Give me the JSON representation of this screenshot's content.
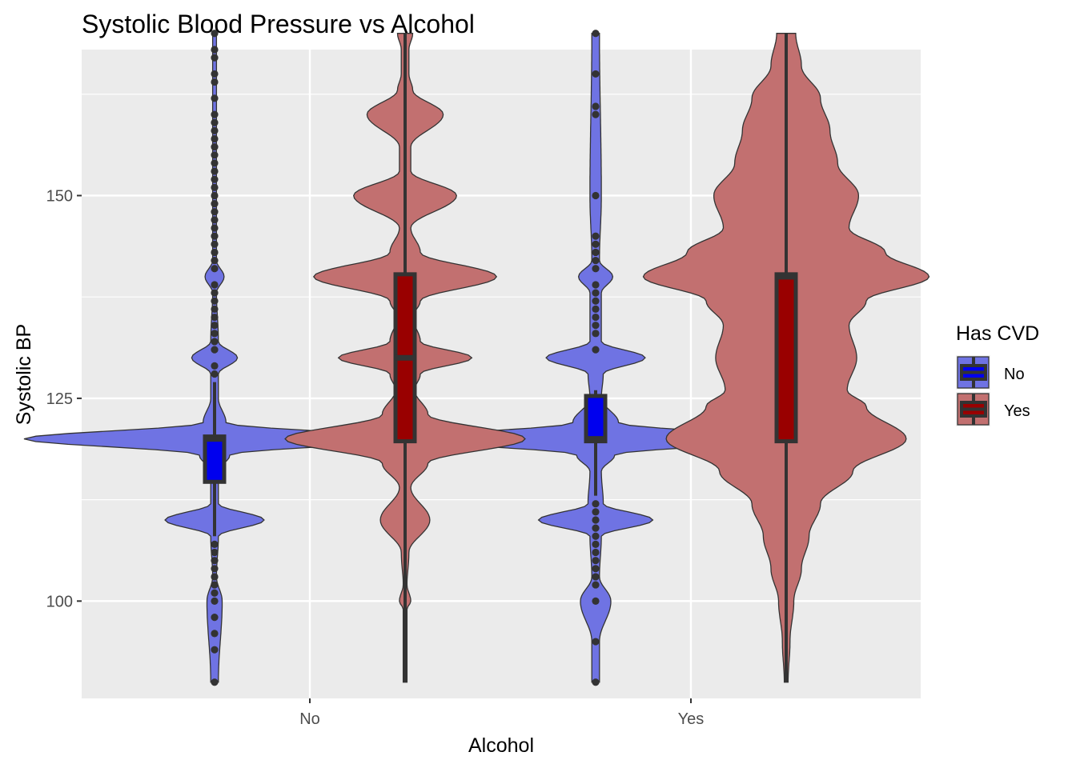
{
  "chart_data": {
    "type": "violin",
    "title": "Systolic Blood Pressure vs Alcohol",
    "xlabel": "Alcohol",
    "ylabel": "Systolic BP",
    "categories": [
      "No",
      "Yes"
    ],
    "ylim": [
      88,
      168
    ],
    "yticks": [
      100,
      125,
      150
    ],
    "grid": true,
    "legend": {
      "title": "Has CVD",
      "position": "right",
      "entries": [
        "No",
        "Yes"
      ]
    },
    "colors": {
      "No": {
        "violin_fill": "#6f73e3",
        "box_fill": "#0000ee"
      },
      "Yes": {
        "violin_fill": "#c27070",
        "box_fill": "#990000"
      },
      "panel": "#ebebeb",
      "grid": "#ffffff",
      "outline": "#333333"
    },
    "series": [
      {
        "name": "No",
        "groups": [
          {
            "category": "No",
            "box": {
              "q1": 115,
              "median": 120,
              "q3": 120,
              "whisker_low": 108,
              "whisker_high": 127
            },
            "range": [
              90,
              170
            ],
            "violin": [
              [
                90,
                0.02
              ],
              [
                100,
                0.04
              ],
              [
                103,
                0.01
              ],
              [
                108,
                0.02
              ],
              [
                110,
                0.26
              ],
              [
                112,
                0.02
              ],
              [
                116,
                0.02
              ],
              [
                118,
                0.08
              ],
              [
                120,
                1.0
              ],
              [
                122,
                0.06
              ],
              [
                125,
                0.02
              ],
              [
                128,
                0.02
              ],
              [
                130,
                0.12
              ],
              [
                132,
                0.02
              ],
              [
                138,
                0.01
              ],
              [
                140,
                0.05
              ],
              [
                142,
                0.01
              ],
              [
                150,
                0.01
              ],
              [
                170,
                0.01
              ]
            ],
            "outliers": [
              90,
              94,
              96,
              98,
              100,
              101,
              102,
              103,
              104,
              105,
              106,
              107,
              128,
              129,
              131,
              132,
              133,
              134,
              135,
              136,
              137,
              138,
              139,
              141,
              142,
              143,
              144,
              145,
              146,
              147,
              148,
              149,
              150,
              151,
              152,
              153,
              154,
              155,
              156,
              157,
              158,
              159,
              160,
              162,
              164,
              165,
              167,
              168,
              170
            ]
          },
          {
            "category": "Yes",
            "box": {
              "q1": 120,
              "median": 120,
              "q3": 125,
              "whisker_low": 113,
              "whisker_high": 126
            },
            "range": [
              90,
              170
            ],
            "violin": [
              [
                90,
                0.02
              ],
              [
                95,
                0.02
              ],
              [
                100,
                0.08
              ],
              [
                103,
                0.02
              ],
              [
                108,
                0.03
              ],
              [
                110,
                0.3
              ],
              [
                112,
                0.04
              ],
              [
                116,
                0.03
              ],
              [
                118,
                0.1
              ],
              [
                120,
                1.0
              ],
              [
                122,
                0.12
              ],
              [
                125,
                0.03
              ],
              [
                128,
                0.04
              ],
              [
                130,
                0.26
              ],
              [
                132,
                0.03
              ],
              [
                138,
                0.03
              ],
              [
                140,
                0.09
              ],
              [
                142,
                0.02
              ],
              [
                150,
                0.03
              ],
              [
                170,
                0.02
              ]
            ],
            "outliers": [
              90,
              95,
              100,
              102,
              103,
              104,
              105,
              106,
              107,
              108,
              109,
              110,
              111,
              112,
              131,
              133,
              134,
              135,
              136,
              137,
              138,
              139,
              141,
              142,
              143,
              144,
              145,
              150,
              160,
              161,
              165,
              170
            ]
          }
        ]
      },
      {
        "name": "Yes",
        "groups": [
          {
            "category": "No",
            "box": {
              "q1": 120,
              "median": 130,
              "q3": 140,
              "whisker_low": 90,
              "whisker_high": 170
            },
            "range": [
              90,
              170
            ],
            "violin": [
              [
                90,
                0.01
              ],
              [
                97,
                0.01
              ],
              [
                99,
                0.01
              ],
              [
                100,
                0.03
              ],
              [
                102,
                0.01
              ],
              [
                106,
                0.02
              ],
              [
                110,
                0.13
              ],
              [
                114,
                0.03
              ],
              [
                117,
                0.12
              ],
              [
                120,
                0.63
              ],
              [
                123,
                0.12
              ],
              [
                126,
                0.05
              ],
              [
                128,
                0.08
              ],
              [
                130,
                0.35
              ],
              [
                132,
                0.08
              ],
              [
                135,
                0.04
              ],
              [
                137,
                0.08
              ],
              [
                140,
                0.48
              ],
              [
                143,
                0.08
              ],
              [
                146,
                0.03
              ],
              [
                150,
                0.27
              ],
              [
                153,
                0.03
              ],
              [
                156,
                0.03
              ],
              [
                160,
                0.2
              ],
              [
                163,
                0.04
              ],
              [
                165,
                0.02
              ],
              [
                168,
                0.02
              ],
              [
                170,
                0.04
              ]
            ],
            "outliers": []
          },
          {
            "category": "Yes",
            "box": {
              "q1": 120,
              "median": 140,
              "q3": 140,
              "whisker_low": 90,
              "whisker_high": 170
            },
            "range": [
              90,
              170
            ],
            "violin": [
              [
                90,
                0.01
              ],
              [
                95,
                0.02
              ],
              [
                100,
                0.04
              ],
              [
                104,
                0.08
              ],
              [
                108,
                0.12
              ],
              [
                112,
                0.18
              ],
              [
                116,
                0.35
              ],
              [
                120,
                0.63
              ],
              [
                124,
                0.42
              ],
              [
                126,
                0.32
              ],
              [
                130,
                0.37
              ],
              [
                134,
                0.33
              ],
              [
                137,
                0.42
              ],
              [
                140,
                0.75
              ],
              [
                143,
                0.52
              ],
              [
                146,
                0.33
              ],
              [
                150,
                0.38
              ],
              [
                154,
                0.27
              ],
              [
                158,
                0.23
              ],
              [
                162,
                0.18
              ],
              [
                166,
                0.08
              ],
              [
                170,
                0.05
              ]
            ],
            "outliers": []
          }
        ]
      }
    ]
  }
}
